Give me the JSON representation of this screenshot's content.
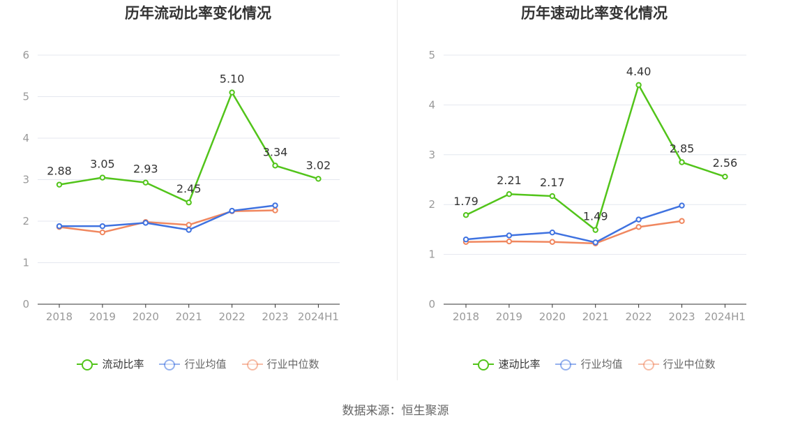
{
  "source_text": "数据来源：恒生聚源",
  "colors": {
    "main": "#52c41a",
    "avg": "#3f72e0",
    "median": "#f0875f",
    "grid": "#e4e7ef",
    "axis": "#333333",
    "tick": "#999999"
  },
  "chart_data": [
    {
      "type": "line",
      "title": "历年流动比率变化情况",
      "categories": [
        "2018",
        "2019",
        "2020",
        "2021",
        "2022",
        "2023",
        "2024H1"
      ],
      "ylim": [
        0,
        6
      ],
      "yticks": [
        "0",
        "1",
        "2",
        "3",
        "4",
        "5",
        "6"
      ],
      "grid": true,
      "legend_position": "bottom",
      "series": [
        {
          "name": "流动比率",
          "color": "#52c41a",
          "values": [
            2.88,
            3.05,
            2.93,
            2.45,
            5.1,
            3.34,
            3.02
          ],
          "data_labels": [
            "2.88",
            "3.05",
            "2.93",
            "2.45",
            "5.10",
            "3.34",
            "3.02"
          ]
        },
        {
          "name": "行业均值",
          "color": "#3f72e0",
          "values": [
            1.88,
            1.88,
            1.96,
            1.79,
            2.25,
            2.38,
            null
          ]
        },
        {
          "name": "行业中位数",
          "color": "#f0875f",
          "values": [
            1.86,
            1.73,
            1.98,
            1.91,
            2.24,
            2.26,
            null
          ]
        }
      ]
    },
    {
      "type": "line",
      "title": "历年速动比率变化情况",
      "categories": [
        "2018",
        "2019",
        "2020",
        "2021",
        "2022",
        "2023",
        "2024H1"
      ],
      "ylim": [
        0,
        5
      ],
      "yticks": [
        "0",
        "1",
        "2",
        "3",
        "4",
        "5"
      ],
      "grid": true,
      "legend_position": "bottom",
      "series": [
        {
          "name": "速动比率",
          "color": "#52c41a",
          "values": [
            1.79,
            2.21,
            2.17,
            1.49,
            4.4,
            2.85,
            2.56
          ],
          "data_labels": [
            "1.79",
            "2.21",
            "2.17",
            "1.49",
            "4.40",
            "2.85",
            "2.56"
          ]
        },
        {
          "name": "行业均值",
          "color": "#3f72e0",
          "values": [
            1.3,
            1.38,
            1.44,
            1.24,
            1.7,
            1.98,
            null
          ]
        },
        {
          "name": "行业中位数",
          "color": "#f0875f",
          "values": [
            1.25,
            1.26,
            1.25,
            1.22,
            1.55,
            1.67,
            null
          ]
        }
      ]
    }
  ]
}
